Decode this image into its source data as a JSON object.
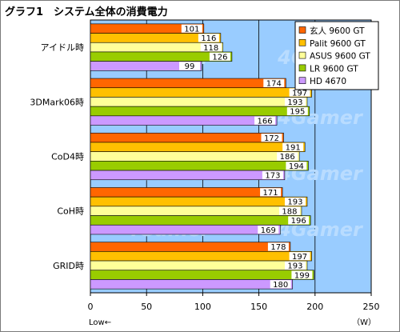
{
  "chart_data": {
    "type": "bar",
    "orientation": "horizontal",
    "title": "グラフ1　システム全体の消費電力",
    "categories": [
      "アイドル時",
      "3DMark06時",
      "CoD4時",
      "CoH時",
      "GRID時"
    ],
    "series": [
      {
        "name": "玄人 9600 GT",
        "color": "#ff6600",
        "values": [
          101,
          174,
          172,
          171,
          178
        ]
      },
      {
        "name": "Palit 9600 GT",
        "color": "#ffc000",
        "values": [
          116,
          197,
          191,
          193,
          197
        ]
      },
      {
        "name": "ASUS 9600 GT",
        "color": "#ffff99",
        "values": [
          118,
          193,
          186,
          188,
          193
        ]
      },
      {
        "name": "LR 9600 GT",
        "color": "#99cc00",
        "values": [
          126,
          195,
          194,
          196,
          199
        ]
      },
      {
        "name": "HD 4670",
        "color": "#cc99ff",
        "values": [
          99,
          166,
          173,
          169,
          180
        ]
      }
    ],
    "xlim": [
      0,
      250
    ],
    "xticks": [
      0,
      50,
      100,
      150,
      200,
      250
    ],
    "xlabel_left": "Low←",
    "xlabel_right": "（W）",
    "grid": true,
    "legend_position": "top-right",
    "plot_background": "#99ccff",
    "watermark": "4Gamer"
  }
}
